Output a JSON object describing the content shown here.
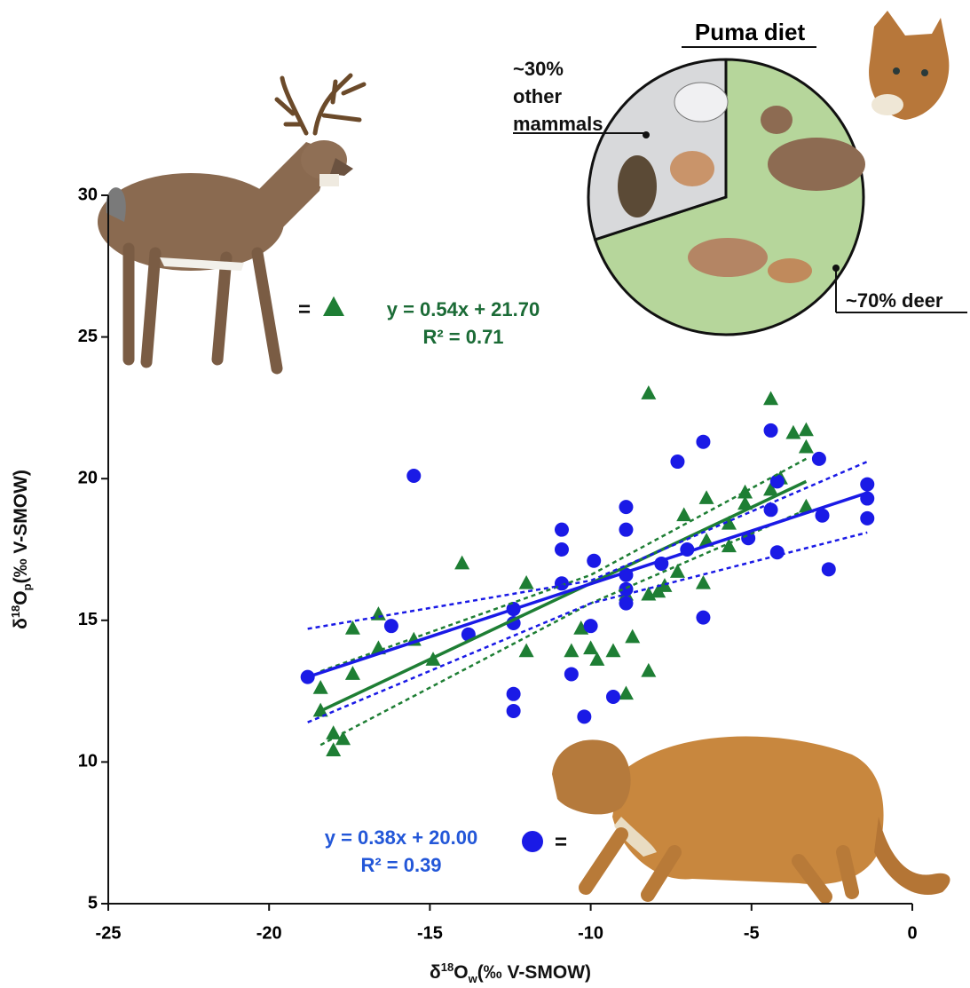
{
  "chart_data": [
    {
      "type": "scatter",
      "x_label": {
        "delta": "δ",
        "sup": "18",
        "base": "O",
        "sub": "w",
        "unit": "(‰ V-SMOW)"
      },
      "y_label": {
        "delta": "δ",
        "sup": "18",
        "base": "O",
        "sub": "p",
        "unit": "(‰ V-SMOW)"
      },
      "xlim": [
        -25,
        0
      ],
      "xticks": [
        -25,
        -20,
        -15,
        -10,
        -5,
        0
      ],
      "ylim": [
        5,
        30
      ],
      "yticks": [
        5,
        10,
        15,
        20,
        25,
        30
      ],
      "legend_equals": "=",
      "series": [
        {
          "marker": "triangle",
          "color": "#1e7e34",
          "text_color": "#1b6b36",
          "equation": "y = 0.54x + 21.70",
          "r2": "R² = 0.71",
          "x": [
            -18.4,
            -18.4,
            -18.0,
            -18.0,
            -17.7,
            -17.4,
            -17.4,
            -16.6,
            -16.6,
            -15.5,
            -14.9,
            -14.0,
            -12.0,
            -12.0,
            -10.6,
            -10.3,
            -10.0,
            -9.8,
            -9.3,
            -8.7,
            -8.2,
            -8.9,
            -8.9,
            -8.2,
            -7.9,
            -7.7,
            -7.3,
            -7.1,
            -6.5,
            -6.4,
            -6.4,
            -5.7,
            -5.7,
            -5.2,
            -5.2,
            -4.4,
            -4.4,
            -4.1,
            -3.7,
            -3.3,
            -3.3,
            -3.3,
            -8.2
          ],
          "values": [
            12.6,
            11.8,
            11.0,
            10.4,
            10.8,
            14.7,
            13.1,
            15.2,
            14.0,
            14.3,
            13.6,
            17.0,
            16.3,
            13.9,
            13.9,
            14.7,
            14.0,
            13.6,
            13.9,
            14.4,
            23.0,
            12.4,
            15.9,
            15.9,
            16.0,
            16.2,
            16.7,
            18.7,
            16.3,
            17.8,
            19.3,
            17.6,
            18.4,
            19.5,
            19.1,
            19.6,
            22.8,
            20.0,
            21.6,
            21.7,
            21.1,
            19.0,
            13.2
          ],
          "fit": {
            "x": [
              -18.4,
              -3.3
            ],
            "y": [
              11.8,
              19.9
            ]
          },
          "band_upper": {
            "x": [
              -18.4,
              -10.0,
              -3.3
            ],
            "y": [
              13.2,
              16.6,
              20.7
            ]
          },
          "band_lower": {
            "x": [
              -18.4,
              -10.0,
              -3.3
            ],
            "y": [
              10.6,
              15.6,
              18.9
            ]
          }
        },
        {
          "marker": "circle",
          "color": "#1a1ae6",
          "text_color": "#2357d8",
          "equation": "y = 0.38x + 20.00",
          "r2": "R² = 0.39",
          "x": [
            -18.8,
            -16.2,
            -15.5,
            -13.8,
            -12.4,
            -12.4,
            -12.4,
            -12.4,
            -10.9,
            -10.9,
            -10.9,
            -10.6,
            -10.2,
            -10.0,
            -9.9,
            -9.3,
            -8.9,
            -8.9,
            -8.9,
            -8.9,
            -8.9,
            -7.8,
            -7.3,
            -7.0,
            -6.5,
            -6.5,
            -5.1,
            -4.4,
            -4.4,
            -4.2,
            -4.2,
            -2.9,
            -2.8,
            -2.6,
            -1.4,
            -1.4,
            -1.4
          ],
          "values": [
            13.0,
            14.8,
            20.1,
            14.5,
            15.4,
            14.9,
            12.4,
            11.8,
            18.2,
            17.5,
            16.3,
            13.1,
            11.6,
            14.8,
            17.1,
            12.3,
            19.0,
            18.2,
            16.6,
            16.1,
            15.6,
            17.0,
            20.6,
            17.5,
            21.3,
            15.1,
            17.9,
            21.7,
            18.9,
            19.9,
            17.4,
            20.7,
            18.7,
            16.8,
            19.8,
            19.3,
            18.6
          ],
          "fit": {
            "x": [
              -18.8,
              -1.4
            ],
            "y": [
              13.0,
              19.5
            ]
          },
          "band_upper": {
            "x": [
              -18.8,
              -10.0,
              -1.4
            ],
            "y": [
              14.7,
              16.4,
              20.6
            ]
          },
          "band_lower": {
            "x": [
              -18.8,
              -10.0,
              -1.4
            ],
            "y": [
              11.4,
              15.6,
              18.1
            ]
          }
        }
      ]
    },
    {
      "type": "pie",
      "title": "Puma diet",
      "categories": [
        "other mammals",
        "deer"
      ],
      "values": [
        30,
        70
      ],
      "value_labels": [
        "~30%",
        "~70%"
      ],
      "colors": [
        "#d8d9db",
        "#b6d69b"
      ]
    }
  ]
}
